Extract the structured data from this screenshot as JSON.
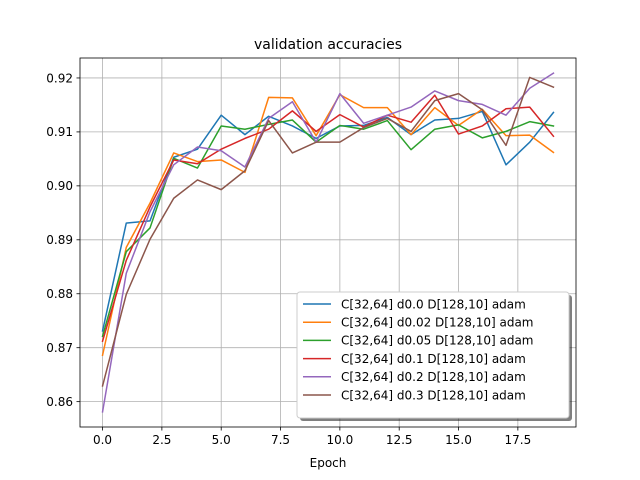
{
  "chart_data": {
    "type": "line",
    "title": "validation accuracies",
    "xlabel": "Epoch",
    "ylabel": "",
    "xlim": [
      -0.95,
      19.95
    ],
    "ylim": [
      0.8553,
      0.9237
    ],
    "xticks": [
      0.0,
      2.5,
      5.0,
      7.5,
      10.0,
      12.5,
      15.0,
      17.5
    ],
    "xtick_labels": [
      "0.0",
      "2.5",
      "5.0",
      "7.5",
      "10.0",
      "12.5",
      "15.0",
      "17.5"
    ],
    "yticks": [
      0.86,
      0.87,
      0.88,
      0.89,
      0.9,
      0.91,
      0.92
    ],
    "ytick_labels": [
      "0.86",
      "0.87",
      "0.88",
      "0.89",
      "0.90",
      "0.91",
      "0.92"
    ],
    "grid": true,
    "legend_position": "lower-right",
    "x": [
      0,
      1,
      2,
      3,
      4,
      5,
      6,
      7,
      8,
      9,
      10,
      11,
      12,
      13,
      14,
      15,
      16,
      17,
      18,
      19
    ],
    "series": [
      {
        "name": "C[32,64] d0.0 D[128,10] adam",
        "color": "#1f77b4",
        "values": [
          0.8731,
          0.8931,
          0.8935,
          0.9053,
          0.9068,
          0.9131,
          0.9095,
          0.9129,
          0.9111,
          0.9088,
          0.9111,
          0.9112,
          0.9127,
          0.9095,
          0.9122,
          0.9125,
          0.9138,
          0.9039,
          0.9081,
          0.9136
        ]
      },
      {
        "name": "C[32,64] d0.02 D[128,10] adam",
        "color": "#ff7f0e",
        "values": [
          0.8686,
          0.8886,
          0.8968,
          0.9061,
          0.9045,
          0.9048,
          0.9025,
          0.9164,
          0.9163,
          0.9093,
          0.9169,
          0.9145,
          0.9145,
          0.9095,
          0.9145,
          0.9112,
          0.9142,
          0.9093,
          0.9094,
          0.9062
        ]
      },
      {
        "name": "C[32,64] d0.05 D[128,10] adam",
        "color": "#2ca02c",
        "values": [
          0.8721,
          0.8878,
          0.8922,
          0.9051,
          0.9033,
          0.9111,
          0.9105,
          0.9114,
          0.9122,
          0.9081,
          0.9112,
          0.9105,
          0.9121,
          0.9067,
          0.9105,
          0.9113,
          0.9089,
          0.9101,
          0.9119,
          0.9111
        ]
      },
      {
        "name": "C[32,64] d0.1 D[128,10] adam",
        "color": "#d62728",
        "values": [
          0.8712,
          0.8862,
          0.8961,
          0.9048,
          0.9041,
          0.9068,
          0.9088,
          0.9105,
          0.9139,
          0.9101,
          0.9132,
          0.9109,
          0.9131,
          0.9118,
          0.9168,
          0.9096,
          0.9111,
          0.9143,
          0.9146,
          0.9092
        ]
      },
      {
        "name": "C[32,64] d0.2 D[128,10] adam",
        "color": "#9467bd",
        "values": [
          0.8581,
          0.8838,
          0.8952,
          0.9039,
          0.9072,
          0.9065,
          0.9035,
          0.9125,
          0.9156,
          0.9081,
          0.9171,
          0.9116,
          0.9131,
          0.9146,
          0.9176,
          0.9158,
          0.9151,
          0.9131,
          0.9181,
          0.9209
        ]
      },
      {
        "name": "C[32,64] d0.3 D[128,10] adam",
        "color": "#8c564b",
        "values": [
          0.8629,
          0.8799,
          0.8901,
          0.8977,
          0.9011,
          0.8993,
          0.9028,
          0.9121,
          0.9061,
          0.9081,
          0.9081,
          0.9108,
          0.9125,
          0.9101,
          0.9158,
          0.9171,
          0.9141,
          0.9075,
          0.9201,
          0.9183
        ]
      }
    ]
  }
}
